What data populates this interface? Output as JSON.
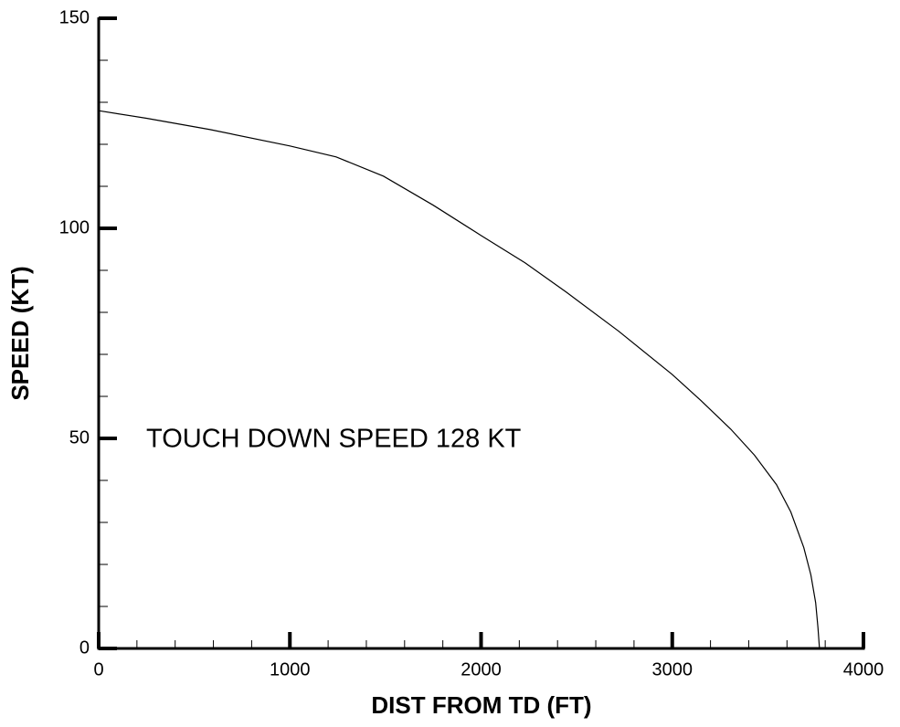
{
  "chart_data": {
    "type": "line",
    "annotation": "TOUCH DOWN SPEED 128 KT",
    "x_label": "DIST FROM TD (FT)",
    "y_label": "SPEED (KT)",
    "x": [
      0,
      250,
      583,
      1000,
      1242,
      1490,
      1750,
      2000,
      2230,
      2446,
      2720,
      3000,
      3150,
      3306,
      3430,
      3545,
      3620,
      3688,
      3725,
      3750,
      3762,
      3770
    ],
    "series": [
      {
        "color": "#000000",
        "values": [
          128,
          126.2,
          123.5,
          119.6,
          117,
          112.4,
          105.5,
          98.3,
          91.8,
          84.8,
          75.5,
          65.2,
          59,
          52.2,
          46,
          39,
          32.5,
          24,
          17.5,
          10.9,
          5,
          0
        ]
      }
    ],
    "xlim": [
      0,
      4000
    ],
    "xticks": [
      0,
      1000,
      2000,
      3000,
      4000
    ],
    "ylim": [
      0,
      150
    ],
    "yticks": [
      0,
      50,
      100,
      150
    ],
    "xminorticks": [
      200,
      400,
      600,
      800,
      1200,
      1400,
      1600,
      1800,
      2200,
      2400,
      2600,
      2800,
      3200,
      3400,
      3600,
      3800
    ],
    "yminorticks": [
      10,
      20,
      30,
      40,
      60,
      70,
      80,
      90,
      110,
      120,
      130,
      140
    ]
  }
}
